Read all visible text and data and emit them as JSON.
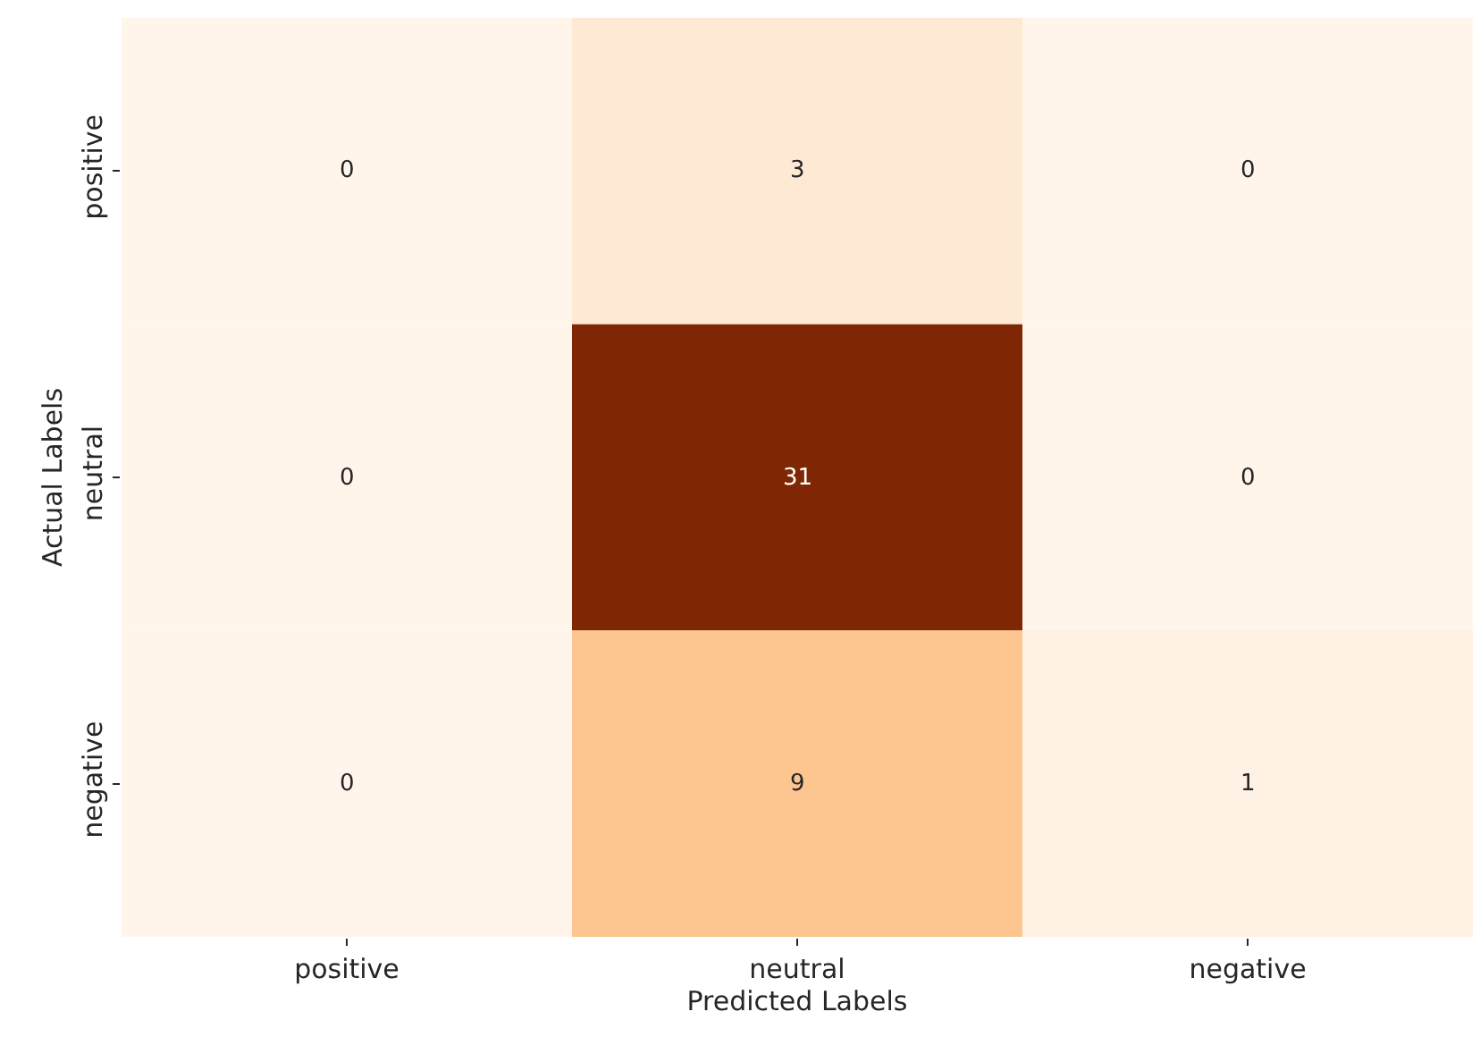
{
  "chart_data": {
    "type": "heatmap",
    "xlabel": "Predicted Labels",
    "ylabel": "Actual Labels",
    "data_labels": true,
    "categories": [
      "positive",
      "neutral",
      "negative"
    ],
    "y_categories": [
      "positive",
      "neutral",
      "negative"
    ],
    "cells": [
      [
        0,
        3,
        0
      ],
      [
        0,
        31,
        0
      ],
      [
        0,
        9,
        1
      ]
    ]
  }
}
